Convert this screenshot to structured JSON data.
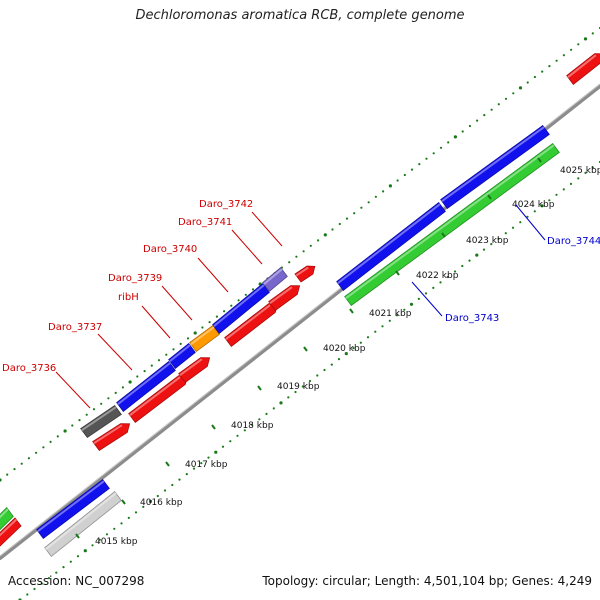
{
  "title": "Dechloromonas aromatica RCB, complete genome",
  "footer": {
    "accession": "Accession: NC_007298",
    "stats": "Topology: circular; Length: 4,501,104 bp; Genes: 4,249"
  },
  "colors": {
    "backbone": "#8c8c8c",
    "tick": "#1a7a1a",
    "label_plus": "#cc0000",
    "label_minus": "#0000cc",
    "leader_plus": "#cc0000",
    "leader_minus": "#0000cc"
  },
  "scale_labels": [
    "4015 kbp",
    "4016 kbp",
    "4017 kbp",
    "4018 kbp",
    "4019 kbp",
    "4020 kbp",
    "4021 kbp",
    "4022 kbp",
    "4023 kbp",
    "4024 kbp",
    "4025 kbp"
  ],
  "features": [
    {
      "name": "gene-green-edge-upper",
      "color": "#33cc33",
      "lane": "mid"
    },
    {
      "name": "gene-red-edge-lower",
      "color": "#ee1111",
      "lane": "inner"
    },
    {
      "name": "gene-blue-4015-outer",
      "color": "#1111ee",
      "lane": "outer"
    },
    {
      "name": "gene-lightgray-4015",
      "color": "#d0d0d0",
      "lane": "mid"
    },
    {
      "name": "gene-darkgray-3736",
      "color": "#555555",
      "lane": "outer"
    },
    {
      "name": "gene-red-4018",
      "color": "#ee1111",
      "lane": "mid"
    },
    {
      "name": "gene-blue-3737",
      "color": "#1111ee",
      "lane": "outer"
    },
    {
      "name": "gene-blue-ribh",
      "color": "#1111ee",
      "lane": "outer"
    },
    {
      "name": "gene-orange-3739",
      "color": "#ff9900",
      "lane": "outer"
    },
    {
      "name": "gene-blue-3740",
      "color": "#1111ee",
      "lane": "outer"
    },
    {
      "name": "gene-purple-3741",
      "color": "#7766cc",
      "lane": "outer"
    },
    {
      "name": "gene-red-3742",
      "color": "#ee1111",
      "lane": "outer"
    },
    {
      "name": "gene-red-inner-a",
      "color": "#ee1111",
      "lane": "mid"
    },
    {
      "name": "gene-red-inner-b",
      "color": "#ee1111",
      "lane": "mid"
    },
    {
      "name": "gene-red-inner-c",
      "color": "#ee1111",
      "lane": "mid"
    },
    {
      "name": "gene-red-inner-d",
      "color": "#ee1111",
      "lane": "mid"
    },
    {
      "name": "gene-blue-3744-lower",
      "color": "#1111ee",
      "lane": "outer"
    },
    {
      "name": "gene-blue-3744-upper",
      "color": "#1111ee",
      "lane": "outer"
    },
    {
      "name": "gene-green-3743",
      "color": "#33cc33",
      "lane": "mid"
    },
    {
      "name": "gene-red-topright",
      "color": "#ee1111",
      "lane": "outer"
    }
  ],
  "gene_labels": [
    {
      "text": "Daro_3736",
      "strand": "plus"
    },
    {
      "text": "Daro_3737",
      "strand": "plus"
    },
    {
      "text": "ribH",
      "strand": "plus"
    },
    {
      "text": "Daro_3739",
      "strand": "plus"
    },
    {
      "text": "Daro_3740",
      "strand": "plus"
    },
    {
      "text": "Daro_3741",
      "strand": "plus"
    },
    {
      "text": "Daro_3742",
      "strand": "plus"
    },
    {
      "text": "Daro_3743",
      "strand": "minus"
    },
    {
      "text": "Daro_3744",
      "strand": "minus"
    }
  ]
}
